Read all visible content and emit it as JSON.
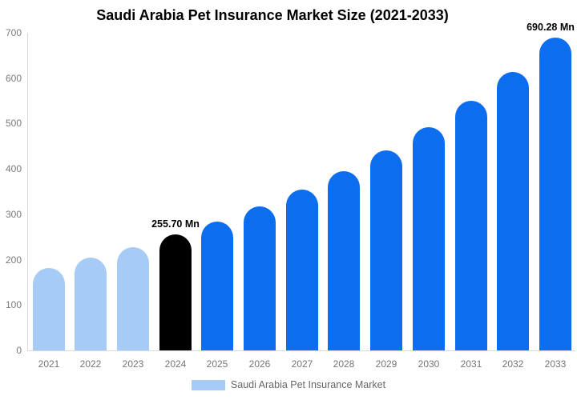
{
  "title": "Saudi Arabia Pet Insurance Market Size (2021-2033)",
  "chart_data": {
    "type": "bar",
    "title": "Saudi Arabia Pet Insurance Market Size (2021-2033)",
    "categories": [
      "2021",
      "2022",
      "2023",
      "2024",
      "2025",
      "2026",
      "2027",
      "2028",
      "2029",
      "2030",
      "2031",
      "2032",
      "2033"
    ],
    "values": [
      181,
      204,
      228,
      255.7,
      284,
      317,
      354,
      395,
      441,
      492,
      550,
      614,
      690.28
    ],
    "unit": "Mn",
    "xlabel": "",
    "ylabel": "",
    "ylim": [
      0,
      700
    ],
    "yticks": [
      0,
      100,
      200,
      300,
      400,
      500,
      600,
      700
    ],
    "grid": false,
    "legend_position": "bottom",
    "legend_label": "Saudi Arabia Pet Insurance Market",
    "annotations": [
      {
        "category": "2024",
        "text": "255.70 Mn"
      },
      {
        "category": "2033",
        "text": "690.28 Mn"
      }
    ],
    "bar_roles": [
      "historical",
      "historical",
      "historical",
      "highlight",
      "forecast",
      "forecast",
      "forecast",
      "forecast",
      "forecast",
      "forecast",
      "forecast",
      "forecast",
      "forecast"
    ],
    "role_colors": {
      "historical": "#a6cbf4",
      "highlight": "#000000",
      "forecast": "#0c6dee"
    },
    "legend_swatch_color": "#a6cbf4"
  },
  "colors": {
    "background": "#ffffff",
    "axis_line": "#d9d9d9",
    "ytick_text": "#7a7a7a",
    "xtick_text": "#757575",
    "legend_text": "#666666",
    "title_text": "#000000"
  }
}
